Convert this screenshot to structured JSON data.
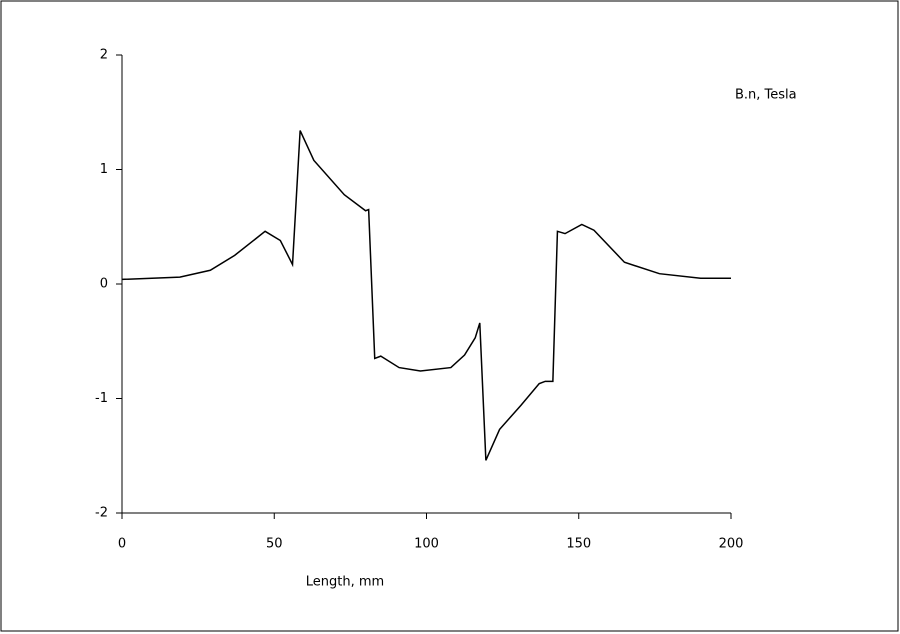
{
  "chart_data": {
    "type": "line",
    "annotation": "B.n, Tesla",
    "x_label": "Length, mm",
    "x": [
      0,
      19,
      29,
      37,
      47,
      52,
      56,
      58.5,
      63,
      73,
      80,
      81,
      83,
      85,
      91,
      98,
      108,
      112.5,
      116,
      117.5,
      119.5,
      124,
      131,
      137,
      139,
      141.5,
      143,
      145.5,
      151,
      155,
      165,
      176.5,
      190,
      200
    ],
    "series": [
      {
        "color": "#000000",
        "values": [
          0.04,
          0.06,
          0.12,
          0.25,
          0.46,
          0.38,
          0.17,
          1.34,
          1.08,
          0.78,
          0.64,
          0.65,
          -0.65,
          -0.63,
          -0.73,
          -0.76,
          -0.73,
          -0.62,
          -0.47,
          -0.34,
          -1.54,
          -1.27,
          -1.06,
          -0.87,
          -0.85,
          -0.85,
          0.46,
          0.44,
          0.52,
          0.47,
          0.19,
          0.09,
          0.05,
          0.05
        ]
      }
    ],
    "xlim": [
      0,
      200
    ],
    "xticks": [
      0,
      50,
      100,
      150,
      200
    ],
    "ylim": [
      -2,
      2
    ],
    "yticks": [
      -2,
      -1,
      0,
      1,
      2
    ],
    "grid": false
  }
}
